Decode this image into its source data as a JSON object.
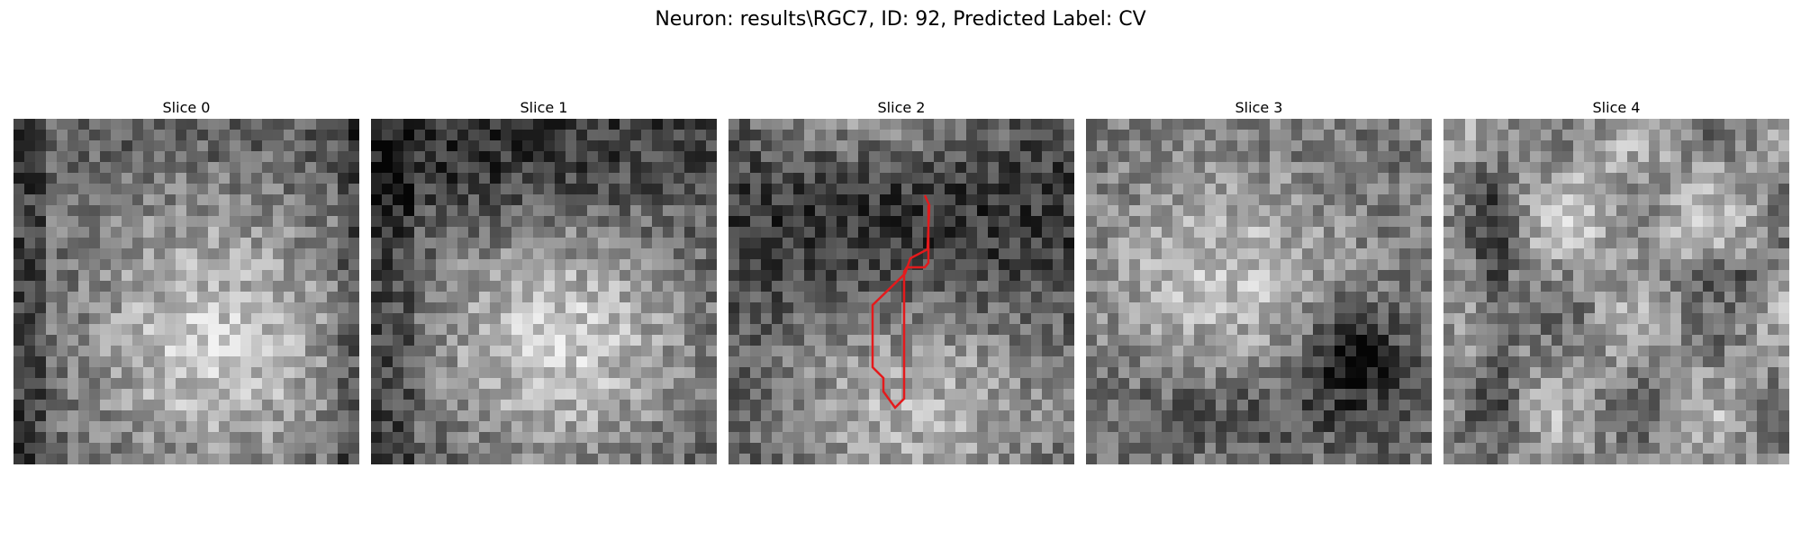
{
  "figure": {
    "title": "Neuron: results\\RGC7, ID: 92, Predicted Label: CV"
  },
  "panels": [
    {
      "title": "Slice 0",
      "pattern": "bright-blob"
    },
    {
      "title": "Slice 1",
      "pattern": "bright-blob-lower"
    },
    {
      "title": "Slice 2",
      "pattern": "dark-top-bright-bottom",
      "contour": true
    },
    {
      "title": "Slice 3",
      "pattern": "bright-left-dark-spot"
    },
    {
      "title": "Slice 4",
      "pattern": "textured"
    }
  ],
  "colors": {
    "contour": "#e41a1c"
  },
  "grid_cells": 32
}
